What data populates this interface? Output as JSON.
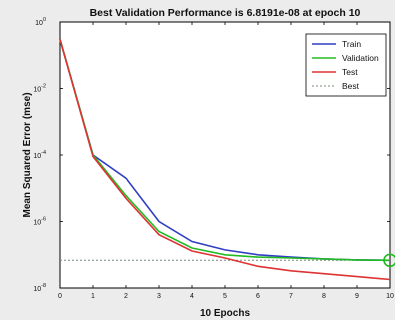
{
  "chart_data": {
    "type": "line",
    "title": "Best Validation Performance is 6.8191e-08 at epoch 10",
    "xlabel": "10 Epochs",
    "ylabel": "Mean Squared Error  (mse)",
    "xlim": [
      0,
      10
    ],
    "ylim": [
      1e-08,
      1
    ],
    "yscale": "log",
    "x_ticks": [
      "0",
      "1",
      "2",
      "3",
      "4",
      "5",
      "6",
      "7",
      "8",
      "9",
      "10"
    ],
    "y_ticks": [
      {
        "value": 1,
        "base": "10",
        "exp": "0"
      },
      {
        "value": 0.01,
        "base": "10",
        "exp": "-2"
      },
      {
        "value": 0.0001,
        "base": "10",
        "exp": "-4"
      },
      {
        "value": 1e-06,
        "base": "10",
        "exp": "-6"
      },
      {
        "value": 1e-08,
        "base": "10",
        "exp": "-8"
      }
    ],
    "x": [
      0,
      1,
      2,
      3,
      4,
      5,
      6,
      7,
      8,
      9,
      10
    ],
    "series": [
      {
        "name": "Train",
        "color": "#2f3fc0",
        "values": [
          0.3,
          0.0001,
          2e-05,
          1e-06,
          2.5e-07,
          1.4e-07,
          1e-07,
          8.5e-08,
          7.5e-08,
          7e-08,
          6.8e-08
        ]
      },
      {
        "name": "Validation",
        "color": "#22bb22",
        "values": [
          0.3,
          0.0001,
          6e-06,
          5e-07,
          1.6e-07,
          1e-07,
          8.5e-08,
          8e-08,
          7.5e-08,
          7e-08,
          6.8191e-08
        ]
      },
      {
        "name": "Test",
        "color": "#dd3333",
        "values": [
          0.3,
          9e-05,
          5e-06,
          4e-07,
          1.3e-07,
          8e-08,
          4.5e-08,
          3.3e-08,
          2.7e-08,
          2.2e-08,
          1.8e-08
        ]
      }
    ],
    "best": {
      "name": "Best",
      "color": "#7a8a7a",
      "value": 6.8191e-08
    },
    "best_marker": {
      "x": 10,
      "y": 6.8191e-08,
      "color": "#22bb22"
    },
    "grid": false,
    "legend_position": "top-right"
  }
}
